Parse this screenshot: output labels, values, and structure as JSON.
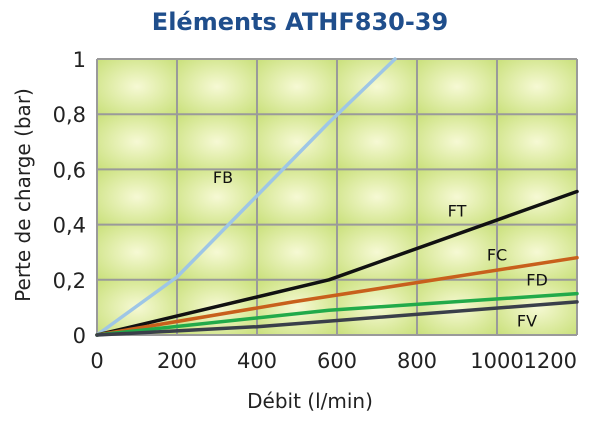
{
  "chart_data": {
    "type": "line",
    "title": "Eléments ATHF830-39",
    "xlabel": "Débit (l/min)",
    "ylabel": "Perte de charge (bar)",
    "xlim": [
      0,
      1200
    ],
    "ylim": [
      0,
      1
    ],
    "x_ticks": [
      "0",
      "200",
      "400",
      "600",
      "800",
      "1000",
      "1200"
    ],
    "y_ticks": [
      "0",
      "0,2",
      "0,4",
      "0,6",
      "0,8",
      "1"
    ],
    "grid": true,
    "series": [
      {
        "name": "FB",
        "color": "#9ec6e6",
        "x": [
          0,
          200,
          580,
          745
        ],
        "y": [
          0,
          0.21,
          0.77,
          1.0
        ]
      },
      {
        "name": "FT",
        "color": "#111111",
        "x": [
          0,
          580,
          1200
        ],
        "y": [
          0,
          0.2,
          0.52
        ]
      },
      {
        "name": "FC",
        "color": "#c8601c",
        "x": [
          0,
          490,
          1200
        ],
        "y": [
          0,
          0.12,
          0.28
        ]
      },
      {
        "name": "FD",
        "color": "#22aa4a",
        "x": [
          0,
          580,
          1200
        ],
        "y": [
          0,
          0.09,
          0.15
        ]
      },
      {
        "name": "FV",
        "color": "#3a3f4a",
        "x": [
          0,
          400,
          1200
        ],
        "y": [
          0,
          0.03,
          0.12
        ]
      }
    ]
  }
}
